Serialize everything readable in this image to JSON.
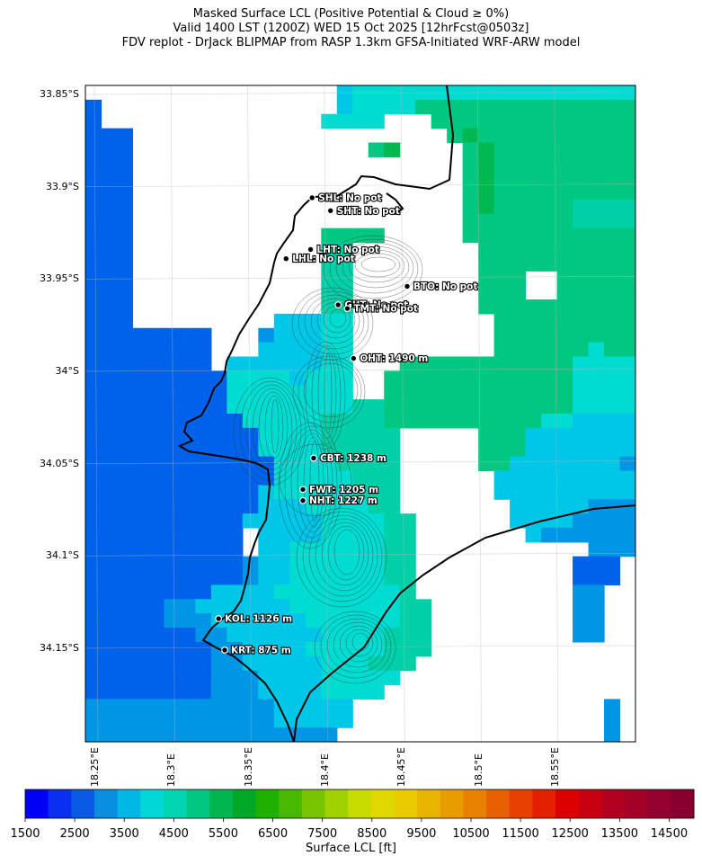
{
  "titles": [
    "Masked Surface LCL (Positive Potential & Cloud ≥ 0%)",
    "Valid 1400 LST (1200Z) WED 15 Oct 2025 [12hrFcst@0503z]",
    "FDV replot - DrJack BLIPMAP from RASP 1.3km GFSA-Initiated WRF-ARW model"
  ],
  "lat_ticks": [
    "33.85°S",
    "33.9°S",
    "33.95°S",
    "34°S",
    "34.05°S",
    "34.1°S",
    "34.15°S"
  ],
  "lon_ticks": [
    "18.25°E",
    "18.3°E",
    "18.35°E",
    "18.4°E",
    "18.45°E",
    "18.5°E",
    "18.55°E"
  ],
  "sites": [
    {
      "id": "SHL",
      "label": "SHL: No pot",
      "lat": 33.906,
      "lon": 18.392
    },
    {
      "id": "SHT",
      "label": "SHT: No pot",
      "lat": 33.913,
      "lon": 18.404
    },
    {
      "id": "LHT",
      "label": "LHT: No pot",
      "lat": 33.934,
      "lon": 18.391
    },
    {
      "id": "LHL",
      "label": "LHL: No pot",
      "lat": 33.939,
      "lon": 18.375
    },
    {
      "id": "BTO",
      "label": "BTO: No pot",
      "lat": 33.954,
      "lon": 18.454
    },
    {
      "id": "GUT",
      "label": "GUT: No pot",
      "lat": 33.964,
      "lon": 18.409
    },
    {
      "id": "TMT",
      "label": "TMT: No pot",
      "lat": 33.966,
      "lon": 18.415
    },
    {
      "id": "OHT",
      "label": "OHT: 1490 m",
      "lat": 33.993,
      "lon": 18.419
    },
    {
      "id": "CBT",
      "label": "CBT: 1238 m",
      "lat": 34.047,
      "lon": 18.393
    },
    {
      "id": "FWT",
      "label": "FWT: 1205 m",
      "lat": 34.064,
      "lon": 18.386
    },
    {
      "id": "NHT",
      "label": "NHT: 1227 m",
      "lat": 34.07,
      "lon": 18.386
    },
    {
      "id": "KOL",
      "label": "KOL: 1126 m",
      "lat": 34.134,
      "lon": 18.331
    },
    {
      "id": "KRT",
      "label": "KRT: 875 m",
      "lat": 34.151,
      "lon": 18.335
    }
  ],
  "colorbar": {
    "label": "Surface LCL [ft]",
    "min": 1500,
    "max": 15000,
    "step": 500,
    "tick_labels": [
      "1500",
      "2500",
      "3500",
      "4500",
      "5500",
      "6500",
      "7500",
      "8500",
      "9500",
      "10500",
      "11500",
      "12500",
      "13500",
      "14500"
    ],
    "colors": [
      "#0000f6",
      "#0a2ff0",
      "#0b5ae6",
      "#0a8ee0",
      "#00b8e6",
      "#00d8d8",
      "#00d4b0",
      "#00c882",
      "#00b450",
      "#00a828",
      "#20b000",
      "#48b800",
      "#78c400",
      "#a0d000",
      "#c8dc00",
      "#e0d800",
      "#e8cc00",
      "#e8b400",
      "#e89c00",
      "#e88000",
      "#e86000",
      "#e84000",
      "#e42000",
      "#dc0000",
      "#c80010",
      "#b40020",
      "#a40028",
      "#940030",
      "#880030"
    ]
  },
  "grid_colors": {
    "A": "#0062ea",
    "B": "#0096e6",
    "C": "#00c6e8",
    "D": "#00dcd2",
    "E": "#00d0a8",
    "F": "#00c880",
    "G": "#00b850"
  }
}
